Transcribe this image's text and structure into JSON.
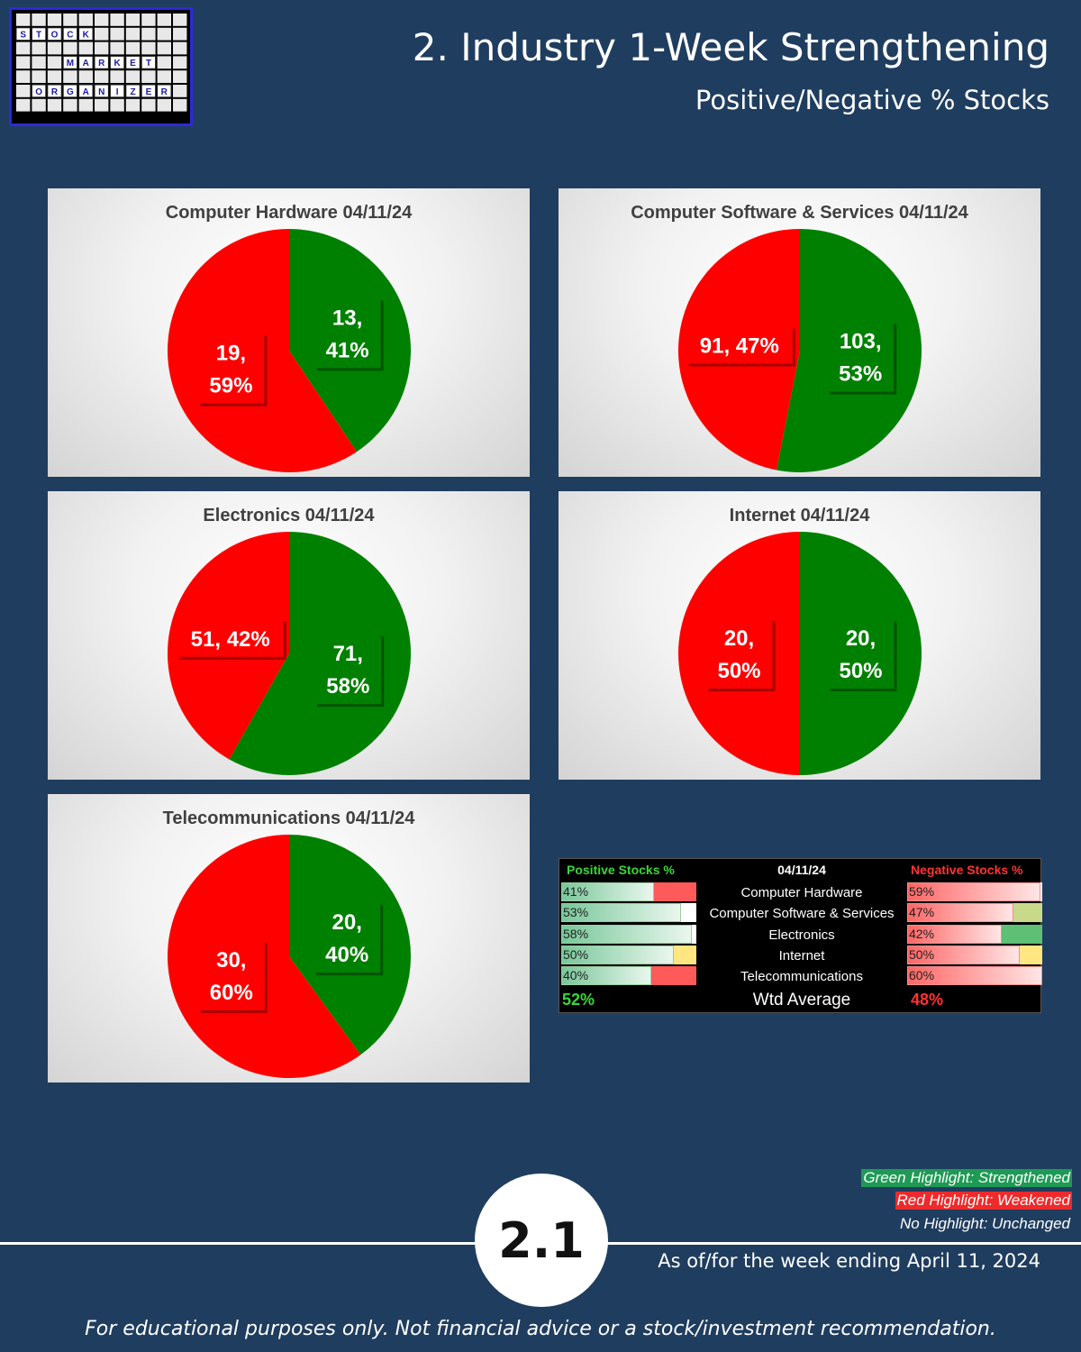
{
  "header": {
    "title": "2. Industry 1-Week Strengthening",
    "subtitle": "Positive/Negative % Stocks"
  },
  "logo": {
    "words": [
      "STOCK",
      "MARKET",
      "ORGANIZER"
    ]
  },
  "colors": {
    "positive": "#008000",
    "negative": "#ff0000",
    "background": "#1f3d5f"
  },
  "chart_data": [
    {
      "type": "pie",
      "title": "Computer Hardware 04/11/24",
      "categories": [
        "Positive",
        "Negative"
      ],
      "values": [
        13,
        19
      ],
      "percents": [
        41,
        59
      ],
      "labels": [
        "13,|41%",
        "19,|59%"
      ]
    },
    {
      "type": "pie",
      "title": "Computer Software & Services 04/11/24",
      "categories": [
        "Positive",
        "Negative"
      ],
      "values": [
        103,
        91
      ],
      "percents": [
        53,
        47
      ],
      "labels": [
        "103,|53%",
        "91, 47%"
      ]
    },
    {
      "type": "pie",
      "title": "Electronics 04/11/24",
      "categories": [
        "Positive",
        "Negative"
      ],
      "values": [
        71,
        51
      ],
      "percents": [
        58,
        42
      ],
      "labels": [
        "71,|58%",
        "51, 42%"
      ]
    },
    {
      "type": "pie",
      "title": "Internet 04/11/24",
      "categories": [
        "Positive",
        "Negative"
      ],
      "values": [
        20,
        20
      ],
      "percents": [
        50,
        50
      ],
      "labels": [
        "20,|50%",
        "20,|50%"
      ]
    },
    {
      "type": "pie",
      "title": "Telecommunications 04/11/24",
      "categories": [
        "Positive",
        "Negative"
      ],
      "values": [
        20,
        30
      ],
      "percents": [
        40,
        60
      ],
      "labels": [
        "20,|40%",
        "30,|60%"
      ]
    }
  ],
  "summary_table": {
    "pos_header": "Positive Stocks %",
    "date": "04/11/24",
    "neg_header": "Negative Stocks %",
    "rows": [
      {
        "industry": "Computer Hardware",
        "pos": "41%",
        "pos_val": 41,
        "pos_flag": "red",
        "neg": "59%",
        "neg_val": 59,
        "neg_flag": "none"
      },
      {
        "industry": "Computer Software & Services",
        "pos": "53%",
        "pos_val": 53,
        "pos_flag": "none",
        "neg": "47%",
        "neg_val": 47,
        "neg_flag": "olive"
      },
      {
        "industry": "Electronics",
        "pos": "58%",
        "pos_val": 58,
        "pos_flag": "none",
        "neg": "42%",
        "neg_val": 42,
        "neg_flag": "green"
      },
      {
        "industry": "Internet",
        "pos": "50%",
        "pos_val": 50,
        "pos_flag": "yellow",
        "neg": "50%",
        "neg_val": 50,
        "neg_flag": "yellow"
      },
      {
        "industry": "Telecommunications",
        "pos": "40%",
        "pos_val": 40,
        "pos_flag": "red",
        "neg": "60%",
        "neg_val": 60,
        "neg_flag": "none"
      }
    ],
    "avg_pos": "52%",
    "avg_label": "Wtd Average",
    "avg_neg": "48%"
  },
  "legend": {
    "green": "Green Highlight: Strengthened",
    "red": "Red Highlight: Weakened",
    "none": "No Highlight: Unchanged"
  },
  "footer": {
    "badge": "2.1",
    "as_of": "As of/for the week ending April 11, 2024",
    "disclaimer": "For educational purposes only. Not financial advice or a stock/investment recommendation."
  }
}
